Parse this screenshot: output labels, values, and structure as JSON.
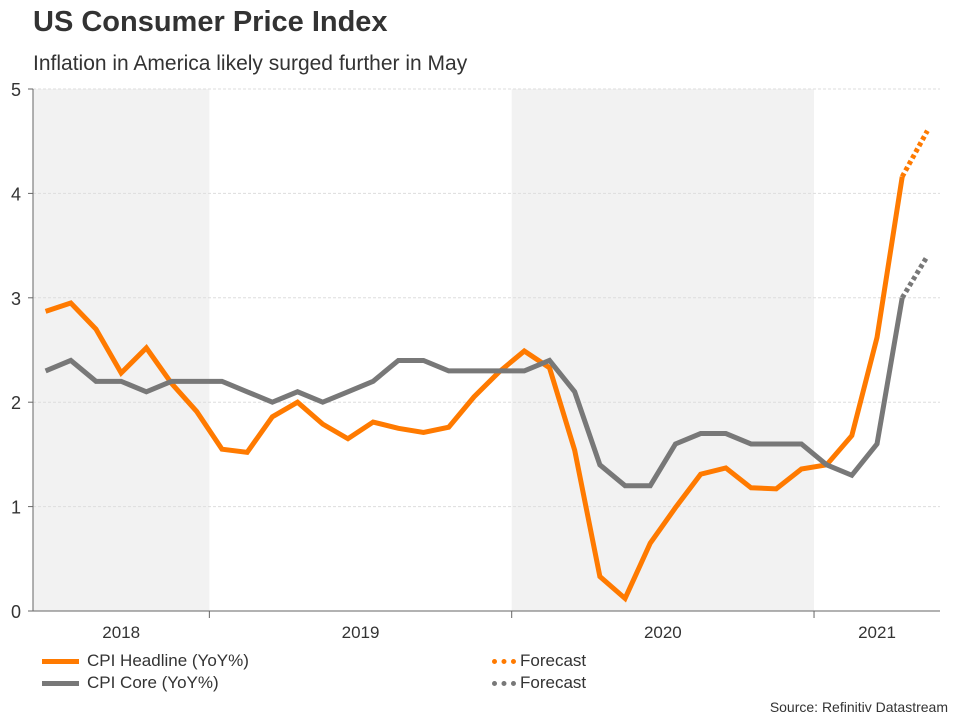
{
  "chart_data": {
    "type": "line",
    "title": "US Consumer Price Index",
    "subtitle": "Inflation in America likely surged further in May",
    "xlabel": "",
    "ylabel": "",
    "ylim": [
      0,
      5
    ],
    "yticks": [
      "0",
      "1",
      "2",
      "3",
      "4",
      "5"
    ],
    "grid": true,
    "x_start": "2018-06",
    "x_end": "2021-05",
    "year_labels": [
      {
        "label": "2018",
        "start_month": 0,
        "months": 7,
        "shaded": true
      },
      {
        "label": "2019",
        "start_month": 7,
        "months": 12,
        "shaded": false
      },
      {
        "label": "2020",
        "start_month": 19,
        "months": 12,
        "shaded": true
      },
      {
        "label": "2021",
        "start_month": 31,
        "months": 5,
        "shaded": false
      }
    ],
    "x": [
      "2018-06",
      "2018-07",
      "2018-08",
      "2018-09",
      "2018-10",
      "2018-11",
      "2018-12",
      "2019-01",
      "2019-02",
      "2019-03",
      "2019-04",
      "2019-05",
      "2019-06",
      "2019-07",
      "2019-08",
      "2019-09",
      "2019-10",
      "2019-11",
      "2019-12",
      "2020-01",
      "2020-02",
      "2020-03",
      "2020-04",
      "2020-05",
      "2020-06",
      "2020-07",
      "2020-08",
      "2020-09",
      "2020-10",
      "2020-11",
      "2020-12",
      "2021-01",
      "2021-02",
      "2021-03",
      "2021-04",
      "2021-05"
    ],
    "series": [
      {
        "name": "CPI Headline (YoY%)",
        "color": "#ff7a00",
        "style": "solid",
        "values": [
          2.87,
          2.95,
          2.7,
          2.28,
          2.52,
          2.18,
          1.91,
          1.55,
          1.52,
          1.86,
          2.0,
          1.79,
          1.65,
          1.81,
          1.75,
          1.71,
          1.76,
          2.05,
          2.29,
          2.49,
          2.33,
          1.54,
          0.33,
          0.12,
          0.65,
          0.99,
          1.31,
          1.37,
          1.18,
          1.17,
          1.36,
          1.4,
          1.68,
          2.62,
          4.16,
          null
        ]
      },
      {
        "name": "CPI Core (YoY%)",
        "color": "#787878",
        "style": "solid",
        "values": [
          2.3,
          2.4,
          2.2,
          2.2,
          2.1,
          2.2,
          2.2,
          2.2,
          2.1,
          2.0,
          2.1,
          2.0,
          2.1,
          2.2,
          2.4,
          2.4,
          2.3,
          2.3,
          2.3,
          2.3,
          2.4,
          2.1,
          1.4,
          1.2,
          1.2,
          1.6,
          1.7,
          1.7,
          1.6,
          1.6,
          1.6,
          1.4,
          1.3,
          1.6,
          3.0,
          null
        ]
      },
      {
        "name": "Forecast",
        "color": "#ff7a00",
        "style": "dotted",
        "from": "2021-04",
        "values_from_to": [
          4.16,
          4.6
        ]
      },
      {
        "name": "Forecast",
        "color": "#787878",
        "style": "dotted",
        "from": "2021-04",
        "values_from_to": [
          3.0,
          3.4
        ]
      }
    ],
    "legend": [
      {
        "label": "CPI Headline (YoY%)",
        "color": "#ff7a00",
        "style": "solid"
      },
      {
        "label": "CPI Core (YoY%)",
        "color": "#787878",
        "style": "solid"
      },
      {
        "label": "Forecast",
        "color": "#ff7a00",
        "style": "dotted"
      },
      {
        "label": "Forecast",
        "color": "#787878",
        "style": "dotted"
      }
    ],
    "legend_position": "bottom",
    "source": "Source: Refinitiv Datastream",
    "shading_color": "#f2f2f2"
  }
}
